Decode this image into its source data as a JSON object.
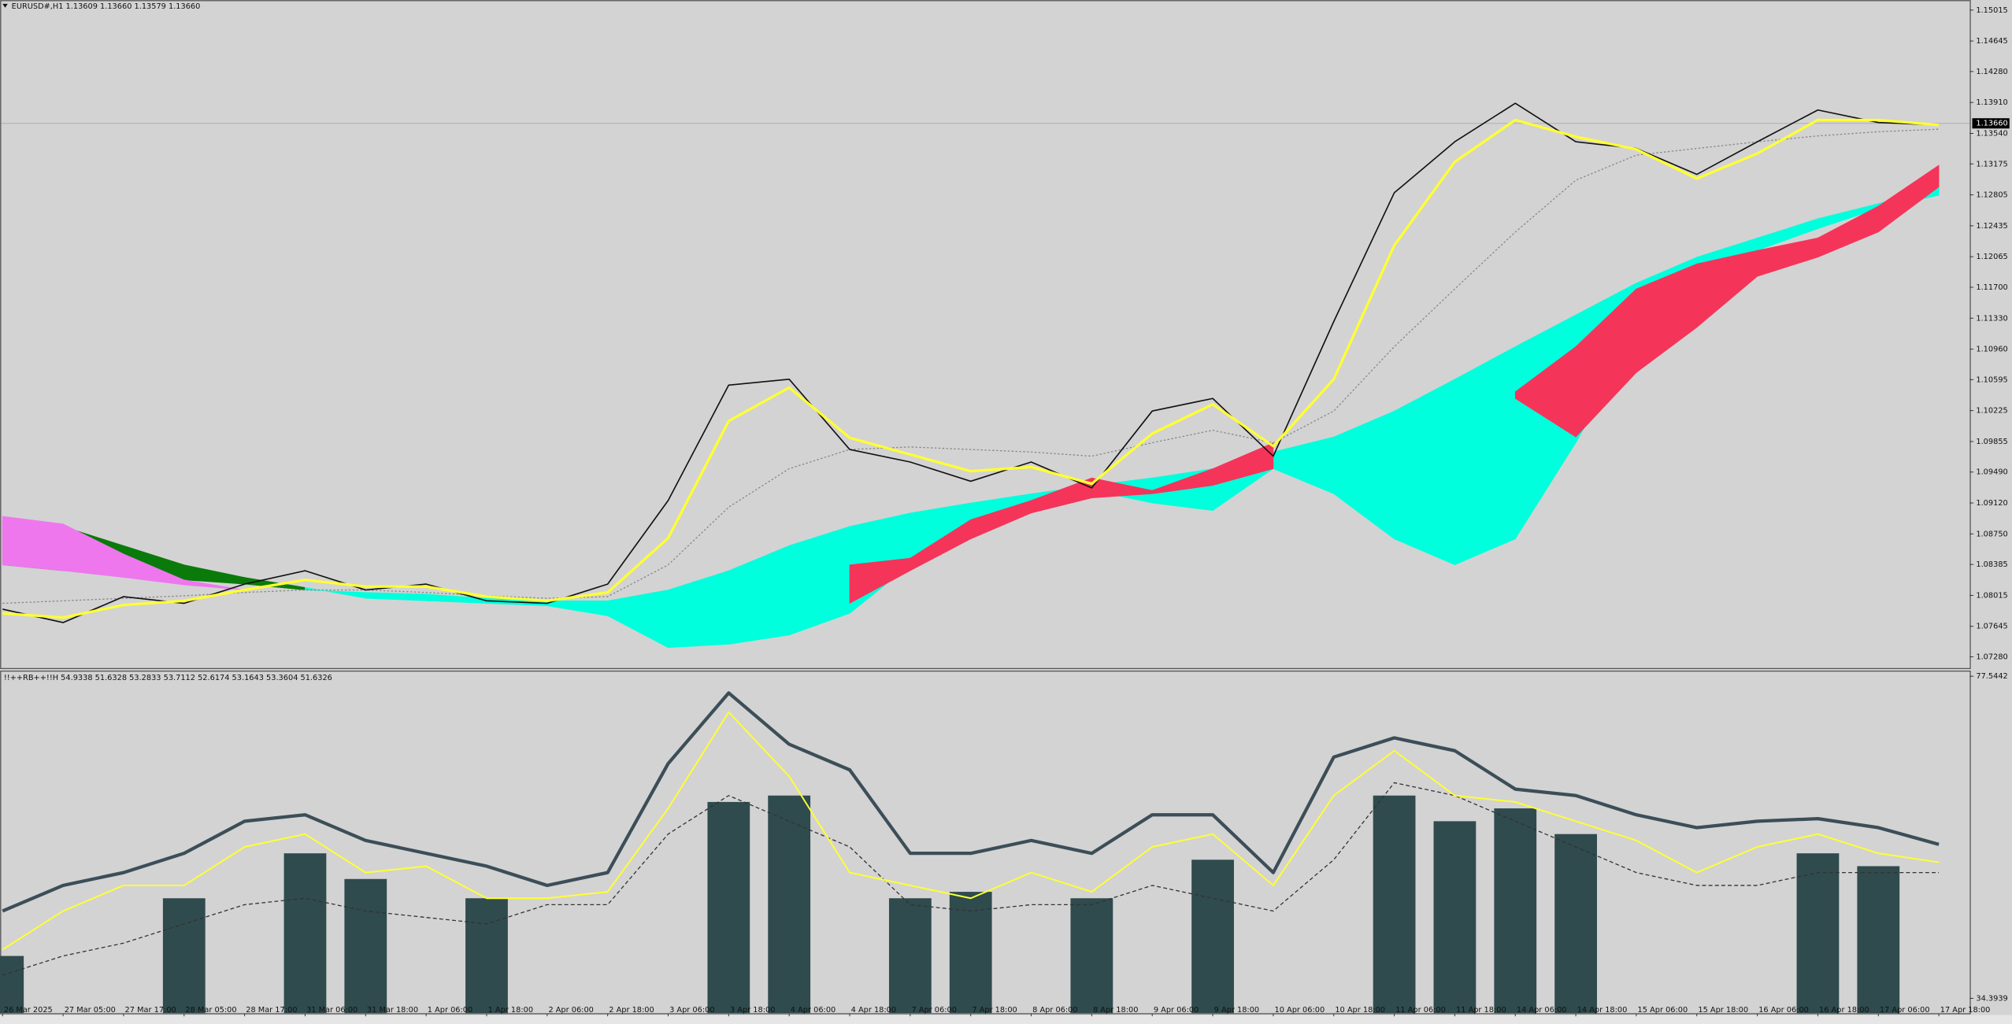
{
  "chart_data": [
    {
      "type": "line",
      "title": "EURUSD#,H1  1.13609 1.13660 1.13579 1.13660",
      "categories": [
        "26 Mar 2025",
        "27 Mar 05:00",
        "27 Mar 17:00",
        "28 Mar 05:00",
        "28 Mar 17:00",
        "31 Mar 06:00",
        "31 Mar 18:00",
        "1 Apr 06:00",
        "1 Apr 18:00",
        "2 Apr 06:00",
        "2 Apr 18:00",
        "3 Apr 06:00",
        "3 Apr 18:00",
        "4 Apr 06:00",
        "4 Apr 18:00",
        "7 Apr 06:00",
        "7 Apr 18:00",
        "8 Apr 06:00",
        "8 Apr 18:00",
        "9 Apr 06:00",
        "9 Apr 18:00",
        "10 Apr 06:00",
        "10 Apr 18:00",
        "11 Apr 06:00",
        "11 Apr 18:00",
        "14 Apr 06:00",
        "14 Apr 18:00",
        "15 Apr 06:00",
        "15 Apr 18:00",
        "16 Apr 06:00",
        "16 Apr 18:00",
        "17 Apr 06:00",
        "17 Apr 18:00"
      ],
      "clouds": [
        {
          "up_color": "#00ffdd",
          "down_color": "#0a7a0a",
          "a": [
            1.0838,
            1.0831,
            1.0826,
            1.082,
            1.0815,
            1.0808,
            1.0805,
            1.0803,
            1.0798,
            1.0795,
            1.0795,
            1.0808,
            1.0831,
            1.0861,
            1.0884,
            1.09,
            1.0912,
            1.0923,
            1.0933,
            1.0942,
            1.0953,
            1.0973,
            1.0991,
            1.1022,
            1.106,
            1.1099,
            1.1137,
            1.1175,
            1.1206,
            1.1229,
            1.1252,
            1.127,
            1.129
          ],
          "b": [
            1.0892,
            1.0884,
            1.0861,
            1.0838,
            1.0823,
            1.0811,
            1.0798,
            1.0795,
            1.0792,
            1.0789,
            1.0777,
            1.0739,
            1.0743,
            1.0754,
            1.078,
            1.0838,
            1.0876,
            1.0907,
            1.0927,
            1.0912,
            1.0903,
            1.0953,
            1.0923,
            1.0869,
            1.0838,
            1.0869,
            1.0984,
            1.1114,
            1.1198,
            1.1214,
            1.124,
            1.1264,
            1.128
          ]
        },
        {
          "up_color": "#f5345a",
          "down_color": "#ee77ee",
          "a": [
            1.0838,
            1.0831,
            1.0823,
            1.0814,
            1.0808,
            null,
            null,
            null,
            null,
            null,
            null,
            null,
            null,
            null,
            1.0838,
            1.0846,
            1.0892,
            1.0915,
            1.0942,
            1.0927,
            1.0953,
            1.0984,
            null,
            null,
            null,
            1.1045,
            1.1099,
            1.1168,
            1.1198,
            1.1214,
            1.1229,
            1.1267,
            1.1316
          ],
          "b": [
            1.0896,
            1.0887,
            1.0851,
            1.082,
            1.0808,
            null,
            null,
            null,
            null,
            null,
            null,
            null,
            null,
            null,
            1.0792,
            1.0831,
            1.0869,
            1.09,
            1.0918,
            1.0923,
            1.0933,
            1.0953,
            null,
            null,
            null,
            1.1037,
            1.0991,
            1.1068,
            1.1122,
            1.1183,
            1.1206,
            1.1236,
            1.129
          ]
        }
      ],
      "series": [
        {
          "color": "#888888",
          "width": 0.8,
          "dash": "1.5 1.5",
          "values": [
            1.0792,
            1.0795,
            1.0798,
            1.0801,
            1.0805,
            1.0808,
            1.0808,
            1.0805,
            1.0801,
            1.0798,
            1.08,
            1.0838,
            1.0907,
            1.0953,
            1.0976,
            1.0979,
            1.0976,
            1.0973,
            1.0968,
            1.0984,
            1.0999,
            1.0984,
            1.1022,
            1.1099,
            1.1168,
            1.1236,
            1.1298,
            1.1328,
            1.1336,
            1.1344,
            1.1351,
            1.1356,
            1.1359
          ]
        },
        {
          "color": "#111111",
          "width": 1,
          "values": [
            1.0785,
            1.0769,
            1.08,
            1.0792,
            1.0815,
            1.0831,
            1.0808,
            1.0815,
            1.0795,
            1.0792,
            1.0815,
            1.0915,
            1.1053,
            1.106,
            1.0976,
            1.0961,
            1.0938,
            1.0961,
            1.093,
            1.1022,
            1.1037,
            1.0968,
            1.1129,
            1.1283,
            1.1344,
            1.139,
            1.1344,
            1.1336,
            1.1305,
            1.1344,
            1.1382,
            1.1367,
            1.1364
          ]
        },
        {
          "color": "#ffff33",
          "width": 2,
          "values": [
            1.078,
            1.0775,
            1.079,
            1.0795,
            1.0808,
            1.082,
            1.0812,
            1.0812,
            1.08,
            1.0795,
            1.0805,
            1.087,
            1.101,
            1.105,
            1.099,
            1.097,
            1.095,
            1.0955,
            1.0935,
            1.0995,
            1.103,
            1.098,
            1.106,
            1.122,
            1.132,
            1.137,
            1.135,
            1.1335,
            1.13,
            1.133,
            1.137,
            1.137,
            1.1364
          ]
        }
      ],
      "current_price": {
        "value": 1.1366,
        "label": "1.13660"
      },
      "ylim": [
        1.0714,
        1.1512
      ],
      "yticks": [
        1.15015,
        1.14645,
        {
          "value": 1.1428,
          "label": "1.14280"
        },
        {
          "value": 1.1391,
          "label": "1.13910"
        },
        {
          "value": 1.1354,
          "label": "1.13540"
        },
        1.13175,
        1.12805,
        1.12435,
        1.12065,
        {
          "value": 1.117,
          "label": "1.11700"
        },
        {
          "value": 1.1133,
          "label": "1.11330"
        },
        {
          "value": 1.1096,
          "label": "1.10960"
        },
        1.10595,
        1.10225,
        1.09855,
        {
          "value": 1.0949,
          "label": "1.09490"
        },
        {
          "value": 1.0912,
          "label": "1.09120"
        },
        {
          "value": 1.0875,
          "label": "1.08750"
        },
        1.08385,
        1.08015,
        1.07645,
        {
          "value": 1.0728,
          "label": "1.07280"
        }
      ]
    },
    {
      "type": "line",
      "title": "!!++RB++!!H 54.9338 51.6328 53.2833 53.7112 52.6174 53.1643 53.3604 51.6326",
      "bars": {
        "color": "#2f4b4d",
        "values": [
          40.07,
          null,
          null,
          47.8,
          null,
          53.82,
          50.38,
          null,
          47.8,
          null,
          null,
          null,
          60.7,
          61.56,
          null,
          47.8,
          48.66,
          null,
          47.8,
          null,
          52.96,
          null,
          null,
          61.56,
          58.12,
          59.84,
          56.4,
          null,
          null,
          null,
          53.82,
          52.1,
          null
        ]
      },
      "series": [
        {
          "color": "#333333",
          "width": 0.8,
          "dash": "3 2",
          "values": [
            37.49,
            40.07,
            41.79,
            44.37,
            46.94,
            47.8,
            46.09,
            45.23,
            44.37,
            46.94,
            46.94,
            56.4,
            61.56,
            58.12,
            54.68,
            46.94,
            46.09,
            46.94,
            46.94,
            49.52,
            47.8,
            46.09,
            52.96,
            63.28,
            61.56,
            58.12,
            54.68,
            51.24,
            49.52,
            49.52,
            51.24,
            51.24,
            51.24
          ]
        },
        {
          "color": "#3c4e58",
          "width": 2.6,
          "values": [
            46.09,
            49.52,
            51.24,
            53.82,
            58.12,
            58.98,
            55.54,
            53.82,
            52.1,
            49.52,
            51.24,
            65.85,
            75.31,
            68.43,
            65.0,
            53.82,
            53.82,
            55.54,
            53.82,
            58.98,
            58.98,
            51.24,
            66.71,
            69.29,
            67.57,
            62.42,
            61.56,
            58.98,
            57.26,
            58.12,
            58.46,
            57.26,
            55.02
          ]
        },
        {
          "color": "#ffff33",
          "width": 1.2,
          "values": [
            40.93,
            46.09,
            49.52,
            49.52,
            54.68,
            56.4,
            51.24,
            52.1,
            47.8,
            47.8,
            48.66,
            59.84,
            72.73,
            64.14,
            51.24,
            49.52,
            47.8,
            51.24,
            48.66,
            54.68,
            56.4,
            49.52,
            61.56,
            67.57,
            61.56,
            60.7,
            58.12,
            55.54,
            51.24,
            54.68,
            56.4,
            53.82,
            52.62
          ]
        }
      ],
      "ylim": [
        32.33,
        78.23
      ],
      "yticks": [
        77.5442,
        34.3939
      ]
    }
  ]
}
